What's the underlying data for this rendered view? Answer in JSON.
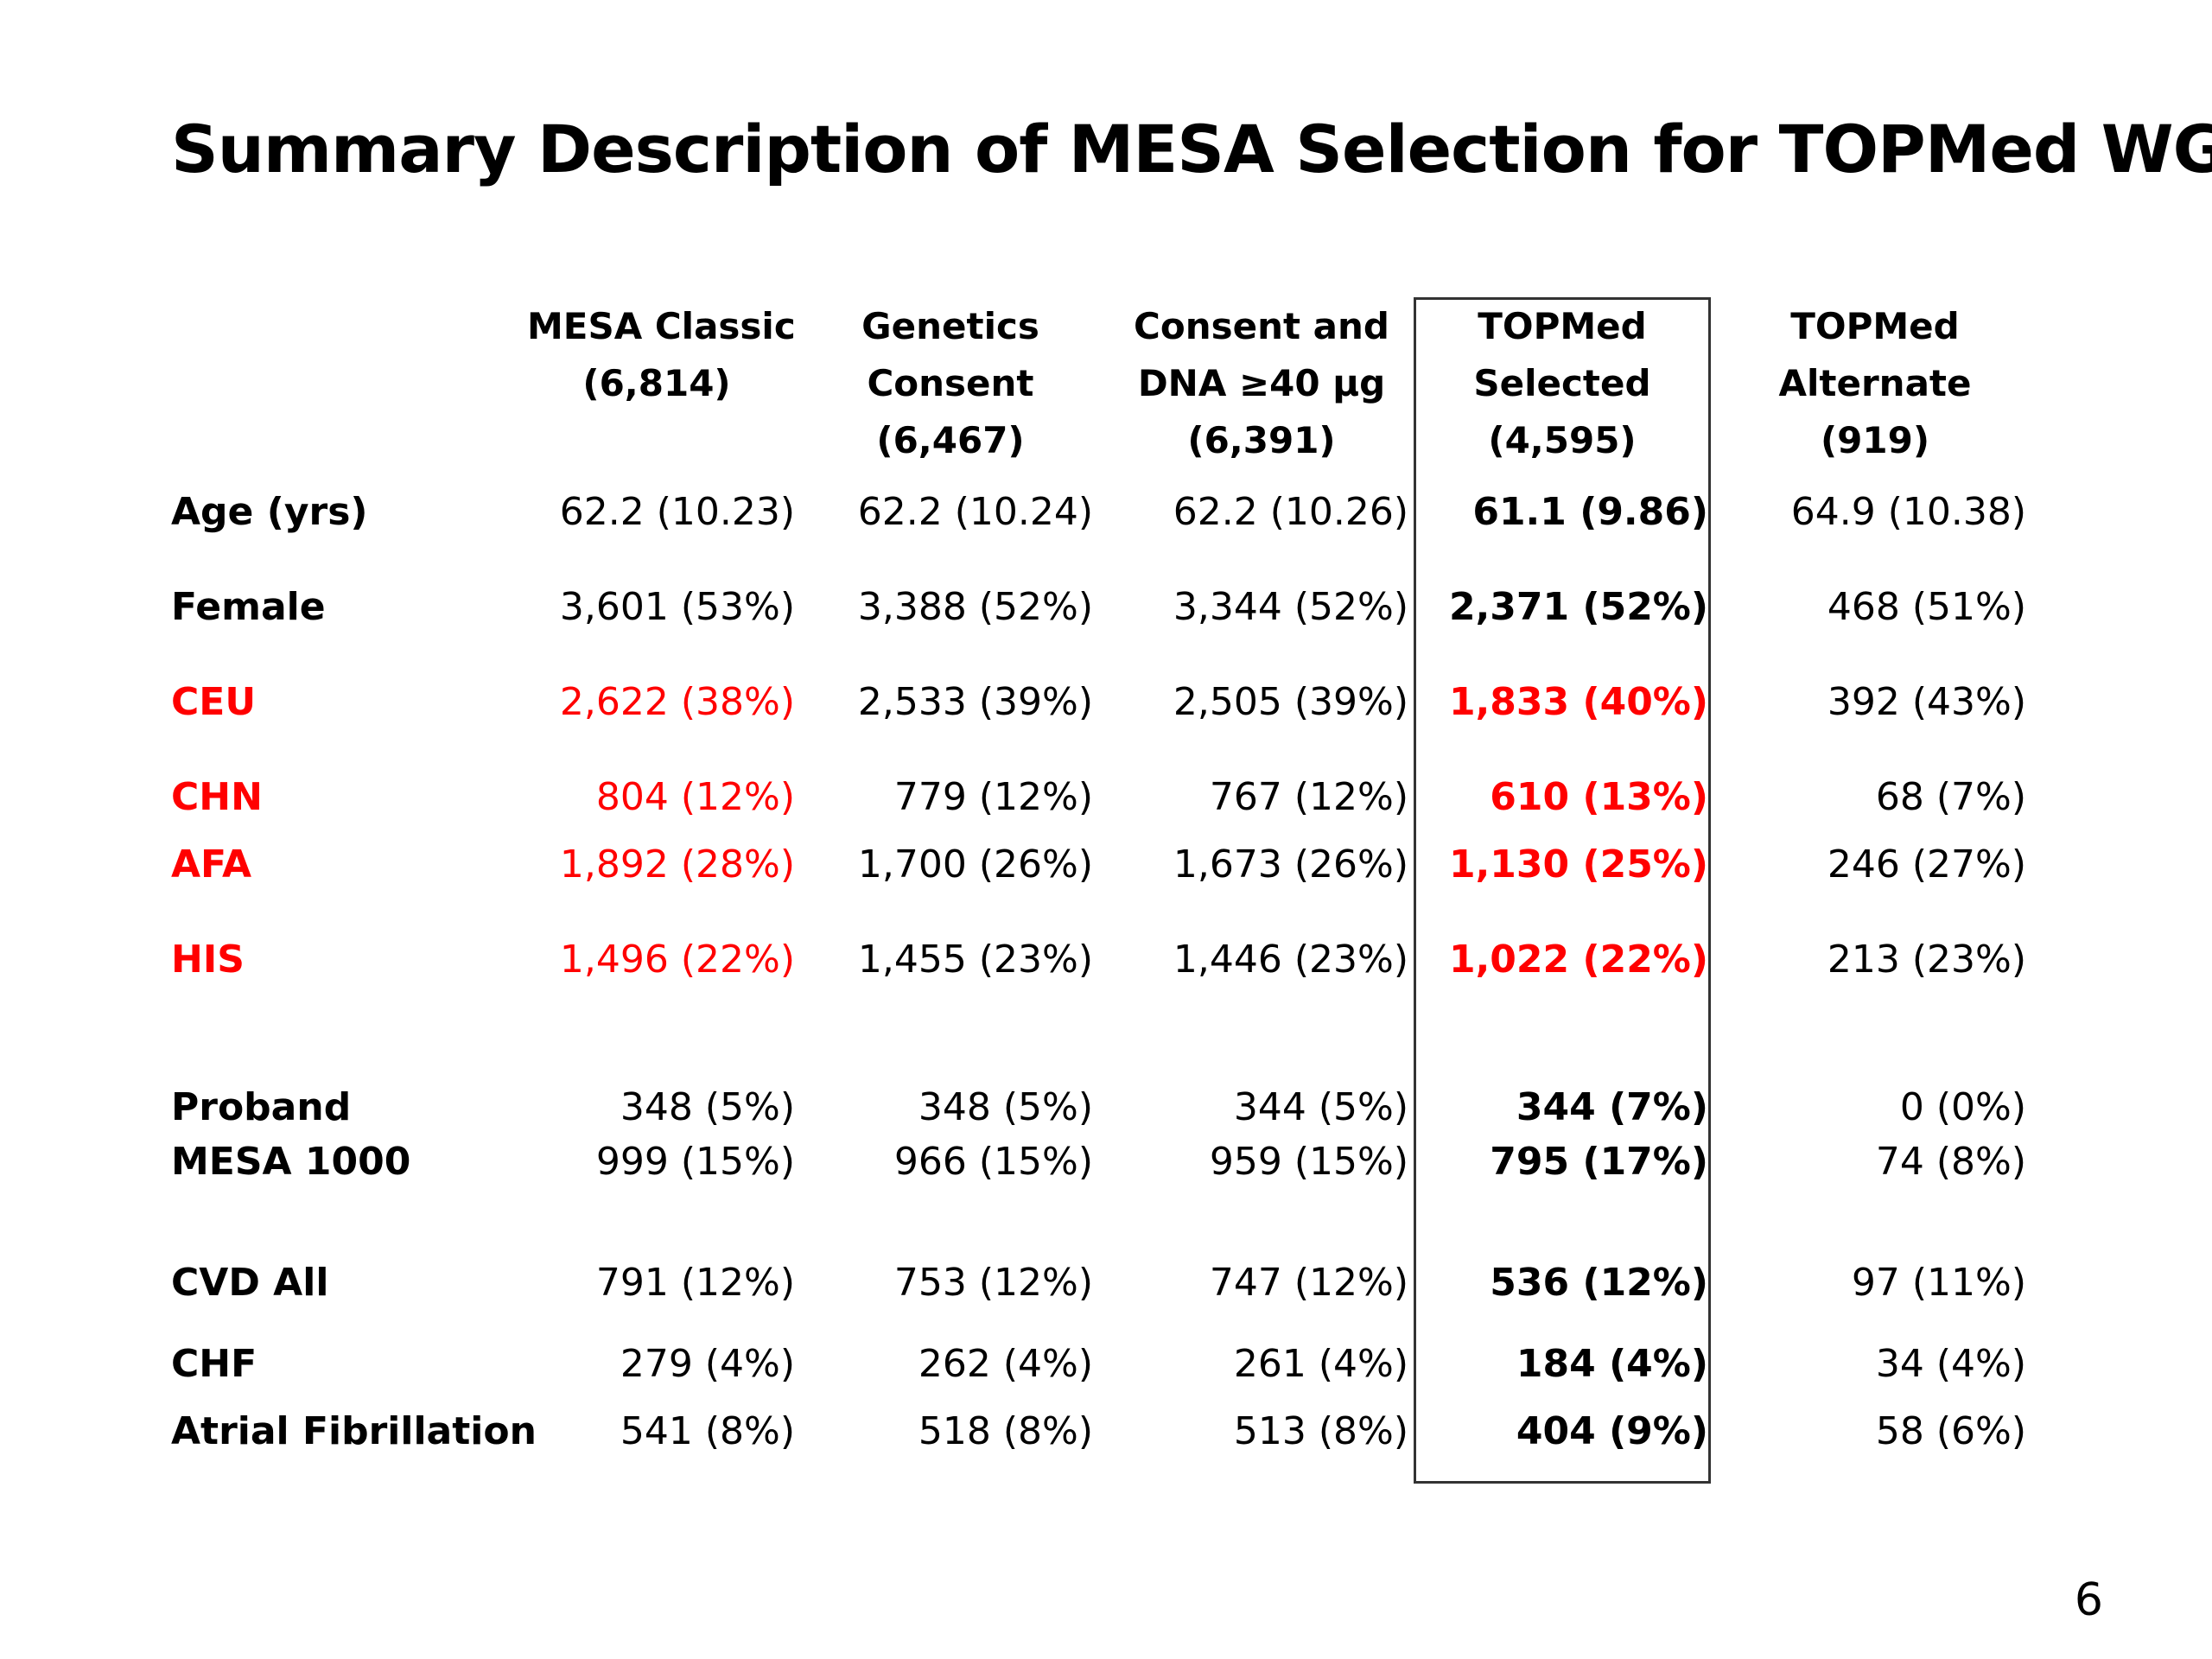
{
  "title": "Summary Description of MESA Selection for TOPMed WGS",
  "page_number": "6",
  "colors": {
    "highlight_text": "#ff0000",
    "normal_text": "#000000",
    "box_border": "#333333"
  },
  "columns": [
    {
      "lines": [
        "MESA Classic",
        "(6,814)"
      ]
    },
    {
      "lines": [
        "Genetics",
        "Consent",
        "(6,467)"
      ]
    },
    {
      "lines": [
        "Consent and",
        "DNA ≥40 µg",
        "(6,391)"
      ]
    },
    {
      "lines": [
        "TOPMed",
        "Selected",
        "(4,595)"
      ]
    },
    {
      "lines": [
        "TOPMed",
        "Alternate",
        "(919)"
      ]
    }
  ],
  "rows": [
    {
      "label": "Age (yrs)",
      "values": [
        "62.2 (10.23)",
        "62.2 (10.24)",
        "62.2 (10.26)",
        "61.1 (9.86)",
        "64.9 (10.38)"
      ]
    },
    {
      "label": "Female",
      "values": [
        "3,601 (53%)",
        "3,388 (52%)",
        "3,344 (52%)",
        "2,371 (52%)",
        "468 (51%)"
      ]
    },
    {
      "label": "CEU",
      "values": [
        "2,622 (38%)",
        "2,533 (39%)",
        "2,505 (39%)",
        "1,833 (40%)",
        "392 (43%)"
      ]
    },
    {
      "label": "CHN",
      "values": [
        "804 (12%)",
        "779 (12%)",
        "767 (12%)",
        "610 (13%)",
        "68 (7%)"
      ]
    },
    {
      "label": "AFA",
      "values": [
        "1,892 (28%)",
        "1,700 (26%)",
        "1,673 (26%)",
        "1,130 (25%)",
        "246 (27%)"
      ]
    },
    {
      "label": "HIS",
      "values": [
        "1,496 (22%)",
        "1,455 (23%)",
        "1,446 (23%)",
        "1,022 (22%)",
        "213 (23%)"
      ]
    },
    {
      "label": "Proband",
      "values": [
        "348 (5%)",
        "348 (5%)",
        "344 (5%)",
        "344 (7%)",
        "0 (0%)"
      ]
    },
    {
      "label": "MESA 1000",
      "values": [
        "999 (15%)",
        "966 (15%)",
        "959 (15%)",
        "795 (17%)",
        "74 (8%)"
      ]
    },
    {
      "label": "CVD All",
      "values": [
        "791 (12%)",
        "753 (12%)",
        "747 (12%)",
        "536 (12%)",
        "97 (11%)"
      ]
    },
    {
      "label": "CHF",
      "values": [
        "279 (4%)",
        "262 (4%)",
        "261 (4%)",
        "184 (4%)",
        "34 (4%)"
      ]
    },
    {
      "label": "Atrial Fibrillation",
      "values": [
        "541 (8%)",
        "518 (8%)",
        "513 (8%)",
        "404 (9%)",
        "58 (6%)"
      ]
    }
  ]
}
